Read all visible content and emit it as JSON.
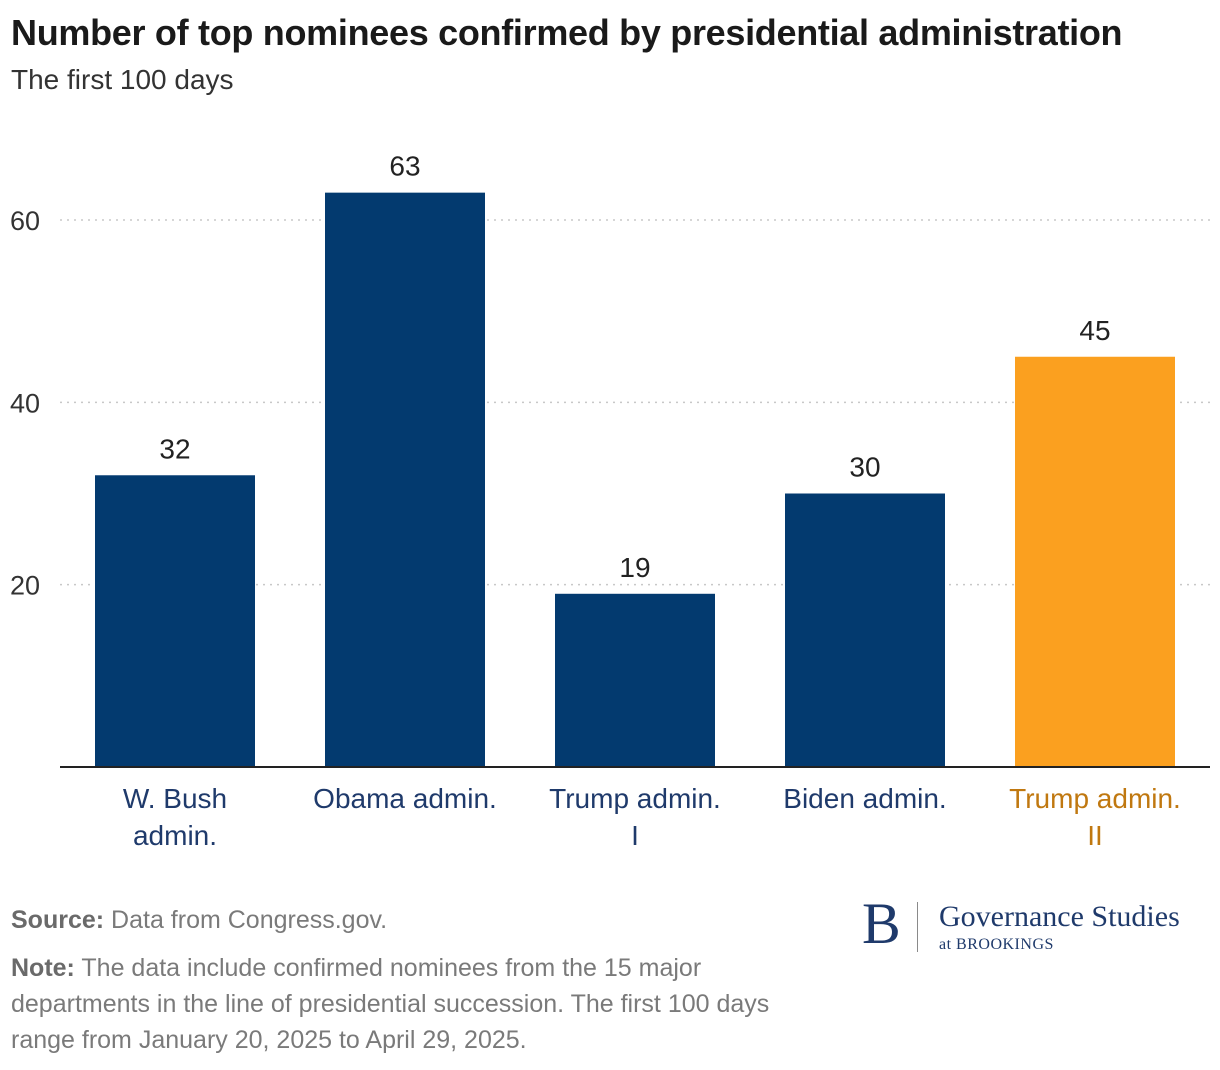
{
  "header": {
    "title": "Number of top nominees confirmed by presidential administration",
    "subtitle": "The first 100 days"
  },
  "chart_data": {
    "type": "bar",
    "categories": [
      [
        "W. Bush",
        "admin."
      ],
      [
        "Obama admin."
      ],
      [
        "Trump admin.",
        "I"
      ],
      [
        "Biden admin."
      ],
      [
        "Trump admin.",
        "II"
      ]
    ],
    "values": [
      32,
      63,
      19,
      30,
      45
    ],
    "data_labels": [
      "32",
      "63",
      "19",
      "30",
      "45"
    ],
    "yticks": [
      20,
      40,
      60
    ],
    "ytick_labels": [
      "20",
      "40",
      "60"
    ],
    "ylim": [
      0,
      70
    ],
    "grid": true,
    "colors": {
      "bar": "#033a6f",
      "highlight_bar": "#fba01f",
      "category_text": "#1f3a6b",
      "highlight_text": "#c07810",
      "highlight_index": 4
    }
  },
  "footer": {
    "source_label": "Source:",
    "source_text": "Data from Congress.gov.",
    "note_label": "Note:",
    "note_text": "The data include confirmed nominees from the 15 major departments in the line of presidential succession. The first 100 days range from January 20, 2025 to April 29, 2025."
  },
  "logo": {
    "letter": "B",
    "name": "Governance Studies",
    "sub": "at BROOKINGS"
  }
}
